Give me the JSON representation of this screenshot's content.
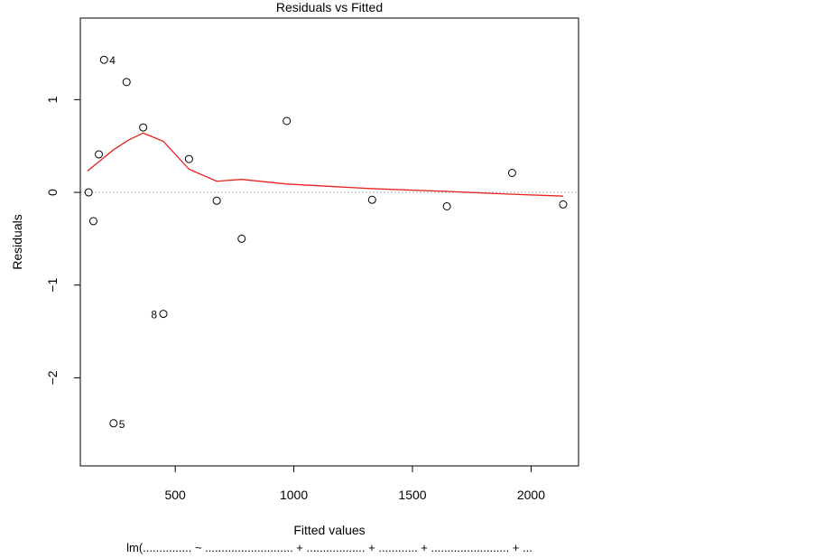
{
  "chart_data": {
    "type": "scatter",
    "title": "Residuals vs Fitted",
    "xlabel": "Fitted values",
    "ylabel": "Residuals",
    "subtitle": "lm(............... ~ ........................... + .................. + ............ + ........................ +  ...",
    "xlim": [
      100,
      2200
    ],
    "ylim": [
      -2.95,
      1.88
    ],
    "xticks": [
      500,
      1000,
      1500,
      2000
    ],
    "yticks": [
      -2,
      -1,
      0,
      1
    ],
    "grid": false,
    "legend": "none",
    "reference_line_y": 0,
    "points": [
      {
        "x": 135,
        "y": 0.0
      },
      {
        "x": 155,
        "y": -0.31
      },
      {
        "x": 178,
        "y": 0.41
      },
      {
        "x": 200,
        "y": 1.43,
        "label": "4"
      },
      {
        "x": 240,
        "y": -2.49,
        "label": "5"
      },
      {
        "x": 295,
        "y": 1.19
      },
      {
        "x": 365,
        "y": 0.7
      },
      {
        "x": 450,
        "y": -1.31,
        "label": "8"
      },
      {
        "x": 558,
        "y": 0.36
      },
      {
        "x": 675,
        "y": -0.09
      },
      {
        "x": 780,
        "y": -0.5
      },
      {
        "x": 970,
        "y": 0.77
      },
      {
        "x": 1330,
        "y": -0.08
      },
      {
        "x": 1645,
        "y": -0.15
      },
      {
        "x": 1920,
        "y": 0.21
      },
      {
        "x": 2135,
        "y": -0.13
      }
    ],
    "smooth_line": {
      "color": "#e8211d",
      "x": [
        130,
        178,
        240,
        300,
        365,
        450,
        558,
        675,
        780,
        970,
        1330,
        1645,
        1920,
        2135
      ],
      "y": [
        0.23,
        0.33,
        0.46,
        0.56,
        0.64,
        0.55,
        0.25,
        0.12,
        0.14,
        0.09,
        0.04,
        0.01,
        -0.02,
        -0.04
      ]
    },
    "colors": {
      "points": "#000000",
      "smooth": "#e8211d",
      "reference": "#9a9a9a"
    }
  }
}
